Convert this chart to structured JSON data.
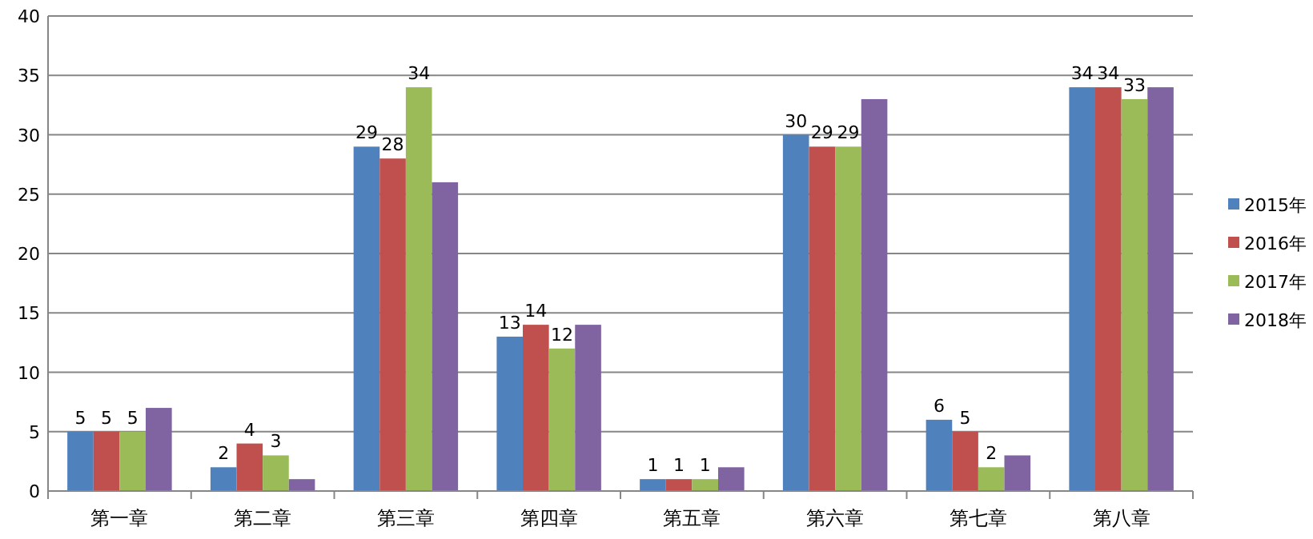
{
  "chart_data": {
    "type": "bar",
    "categories": [
      "第一章",
      "第二章",
      "第三章",
      "第四章",
      "第五章",
      "第六章",
      "第七章",
      "第八章"
    ],
    "series": [
      {
        "name": "2015年",
        "color": "#4f81bd",
        "values": [
          5,
          2,
          29,
          13,
          1,
          30,
          6,
          34
        ],
        "value_labels": [
          "5",
          "2",
          "29",
          "13",
          "1",
          "30",
          "6",
          "34"
        ]
      },
      {
        "name": "2016年",
        "color": "#c0504d",
        "values": [
          5,
          4,
          28,
          14,
          1,
          29,
          5,
          34
        ],
        "value_labels": [
          "5",
          "4",
          "28",
          "14",
          "1",
          "29",
          "5",
          "34"
        ]
      },
      {
        "name": "2017年",
        "color": "#9bbb59",
        "values": [
          5,
          3,
          34,
          12,
          1,
          29,
          2,
          33
        ],
        "value_labels": [
          "5",
          "3",
          "34",
          "12",
          "1",
          "29",
          "2",
          "33"
        ]
      },
      {
        "name": "2018年",
        "color": "#8064a2",
        "values": [
          7,
          1,
          26,
          14,
          2,
          33,
          3,
          34
        ]
      }
    ],
    "ylim": [
      0,
      40
    ],
    "yticks": [
      0,
      5,
      10,
      15,
      20,
      25,
      30,
      35,
      40
    ],
    "grid": "y",
    "legend": "right"
  }
}
